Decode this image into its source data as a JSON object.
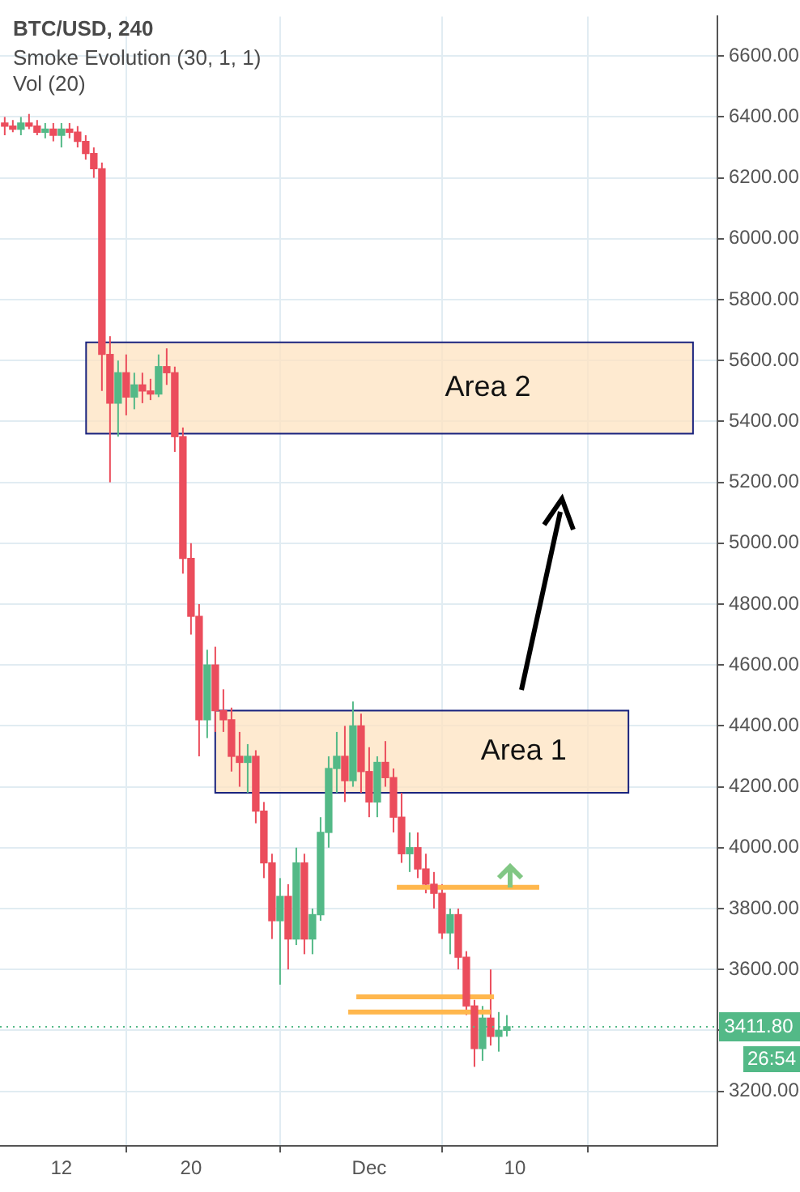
{
  "chart_data": {
    "type": "candlestick",
    "title": "BTC/USD, 240",
    "subtitle": "Smoke Evolution (30, 1, 1)",
    "x": [
      "--11-08T12:00",
      "--11-09",
      "--11-09T12:00",
      "--11-10",
      "--11-10T12:00",
      "--11-11",
      "--11-11T12:00",
      "--11-12",
      "--11-12T12:00",
      "--11-13",
      "--11-13T12:00",
      "--11-14",
      "--11-14T12:00",
      "--11-15",
      "--11-15T12:00",
      "--11-16",
      "--11-16T12:00",
      "--11-17",
      "--11-17T12:00",
      "--11-18",
      "--11-18T12:00",
      "--11-19",
      "--11-19T12:00",
      "--11-20",
      "--11-20T12:00",
      "--11-21",
      "--11-21T12:00",
      "--11-22",
      "--11-22T12:00",
      "--11-23",
      "--11-23T12:00",
      "--11-24",
      "--11-24T12:00",
      "--11-25",
      "--11-25T12:00",
      "--11-26",
      "--11-26T12:00",
      "--11-27",
      "--11-27T12:00",
      "--11-28",
      "--11-28T12:00",
      "--11-29",
      "--11-29T12:00",
      "--11-30",
      "--11-30T12:00",
      "--12-01",
      "--12-01T12:00",
      "--12-02",
      "--12-02T12:00",
      "--12-03",
      "--12-03T12:00",
      "--12-04",
      "--12-04T12:00",
      "--12-05",
      "--12-05T12:00",
      "--12-06",
      "--12-06T12:00",
      "--12-07",
      "--12-07T12:00",
      "--12-08",
      "--12-08T12:00",
      "--12-09",
      "--12-09T12:00"
    ],
    "ohlc": [
      [
        6380,
        6400,
        6340,
        6370
      ],
      [
        6370,
        6390,
        6350,
        6360
      ],
      [
        6360,
        6400,
        6340,
        6380
      ],
      [
        6380,
        6410,
        6360,
        6370
      ],
      [
        6370,
        6390,
        6340,
        6350
      ],
      [
        6350,
        6380,
        6330,
        6360
      ],
      [
        6360,
        6380,
        6320,
        6340
      ],
      [
        6340,
        6380,
        6300,
        6360
      ],
      [
        6360,
        6380,
        6330,
        6350
      ],
      [
        6350,
        6370,
        6300,
        6320
      ],
      [
        6320,
        6340,
        6260,
        6280
      ],
      [
        6280,
        6300,
        6200,
        6230
      ],
      [
        6230,
        6250,
        5500,
        5620
      ],
      [
        5620,
        5680,
        5200,
        5460
      ],
      [
        5460,
        5600,
        5350,
        5560
      ],
      [
        5560,
        5620,
        5420,
        5480
      ],
      [
        5480,
        5560,
        5440,
        5520
      ],
      [
        5520,
        5560,
        5460,
        5500
      ],
      [
        5500,
        5540,
        5470,
        5490
      ],
      [
        5490,
        5620,
        5480,
        5580
      ],
      [
        5580,
        5640,
        5520,
        5560
      ],
      [
        5560,
        5580,
        5300,
        5350
      ],
      [
        5350,
        5380,
        4900,
        4950
      ],
      [
        4950,
        5000,
        4700,
        4760
      ],
      [
        4760,
        4800,
        4300,
        4420
      ],
      [
        4420,
        4650,
        4360,
        4600
      ],
      [
        4600,
        4660,
        4380,
        4450
      ],
      [
        4450,
        4520,
        4380,
        4420
      ],
      [
        4420,
        4460,
        4250,
        4300
      ],
      [
        4300,
        4380,
        4200,
        4280
      ],
      [
        4280,
        4340,
        4180,
        4300
      ],
      [
        4300,
        4320,
        4080,
        4120
      ],
      [
        4120,
        4150,
        3900,
        3950
      ],
      [
        3950,
        3980,
        3700,
        3760
      ],
      [
        3760,
        3900,
        3550,
        3840
      ],
      [
        3840,
        3880,
        3600,
        3700
      ],
      [
        3700,
        4000,
        3680,
        3950
      ],
      [
        3950,
        3980,
        3650,
        3700
      ],
      [
        3700,
        3800,
        3650,
        3780
      ],
      [
        3780,
        4100,
        3760,
        4050
      ],
      [
        4050,
        4300,
        4000,
        4260
      ],
      [
        4260,
        4380,
        4180,
        4300
      ],
      [
        4300,
        4400,
        4150,
        4220
      ],
      [
        4220,
        4480,
        4200,
        4400
      ],
      [
        4400,
        4440,
        4180,
        4250
      ],
      [
        4250,
        4330,
        4100,
        4150
      ],
      [
        4150,
        4300,
        4100,
        4280
      ],
      [
        4280,
        4350,
        4200,
        4230
      ],
      [
        4230,
        4260,
        4050,
        4100
      ],
      [
        4100,
        4180,
        3950,
        3980
      ],
      [
        3980,
        4050,
        3920,
        4000
      ],
      [
        4000,
        4050,
        3900,
        3930
      ],
      [
        3930,
        3980,
        3850,
        3880
      ],
      [
        3880,
        3920,
        3800,
        3850
      ],
      [
        3850,
        3880,
        3700,
        3720
      ],
      [
        3720,
        3800,
        3650,
        3780
      ],
      [
        3780,
        3800,
        3600,
        3640
      ],
      [
        3640,
        3660,
        3450,
        3480
      ],
      [
        3480,
        3500,
        3280,
        3340
      ],
      [
        3340,
        3480,
        3300,
        3440
      ],
      [
        3440,
        3600,
        3350,
        3380
      ],
      [
        3380,
        3460,
        3330,
        3400
      ],
      [
        3400,
        3450,
        3380,
        3411.8
      ]
    ],
    "colors": [
      "#eb4d5c",
      "#eb4d5c",
      "#53b987",
      "#eb4d5c",
      "#eb4d5c",
      "#53b987",
      "#eb4d5c",
      "#53b987",
      "#eb4d5c",
      "#eb4d5c",
      "#eb4d5c",
      "#eb4d5c",
      "#eb4d5c",
      "#eb4d5c",
      "#53b987",
      "#eb4d5c",
      "#53b987",
      "#eb4d5c",
      "#eb4d5c",
      "#53b987",
      "#eb4d5c",
      "#eb4d5c",
      "#eb4d5c",
      "#eb4d5c",
      "#eb4d5c",
      "#53b987",
      "#eb4d5c",
      "#eb4d5c",
      "#eb4d5c",
      "#eb4d5c",
      "#53b987",
      "#eb4d5c",
      "#eb4d5c",
      "#eb4d5c",
      "#53b987",
      "#eb4d5c",
      "#53b987",
      "#eb4d5c",
      "#53b987",
      "#53b987",
      "#53b987",
      "#53b987",
      "#eb4d5c",
      "#53b987",
      "#eb4d5c",
      "#eb4d5c",
      "#53b987",
      "#eb4d5c",
      "#eb4d5c",
      "#eb4d5c",
      "#53b987",
      "#eb4d5c",
      "#eb4d5c",
      "#eb4d5c",
      "#eb4d5c",
      "#53b987",
      "#eb4d5c",
      "#eb4d5c",
      "#eb4d5c",
      "#53b987",
      "#eb4d5c",
      "#53b987",
      "#53b987"
    ],
    "series": [
      {
        "type": "line",
        "color": "#ffb74d",
        "x": [
          "--12-02T17:00",
          "--12-11T12:00"
        ],
        "values": [
          3870,
          3870
        ]
      },
      {
        "type": "line",
        "color": "#ffb74d",
        "x": [
          "--11-30T05:00",
          "--12-08T17:00"
        ],
        "values": [
          3510,
          3510
        ]
      },
      {
        "type": "line",
        "color": "#ffb74d",
        "x": [
          "--11-29T17:00",
          "--12-08T12:00"
        ],
        "values": [
          3460,
          3460
        ]
      }
    ],
    "xlim": [
      "--11-08T05:00",
      "--12-22T12:00"
    ],
    "xticks": [
      {
        "value": "--11-12",
        "label": "12"
      },
      {
        "value": "--11-20",
        "label": "20"
      },
      {
        "value": "--12-01",
        "label": "Dec"
      },
      {
        "value": "--12-10",
        "label": "10"
      }
    ],
    "ylim": [
      3020,
      6730
    ],
    "yticks": [
      {
        "value": 3200,
        "label": "3200.00"
      },
      {
        "value": 3400,
        "label": null
      },
      {
        "value": 3600,
        "label": "3600.00"
      },
      {
        "value": 3800,
        "label": "3800.00"
      },
      {
        "value": 4000,
        "label": "4000.00"
      },
      {
        "value": 4200,
        "label": "4200.00"
      },
      {
        "value": 4400,
        "label": "4400.00"
      },
      {
        "value": 4600,
        "label": "4600.00"
      },
      {
        "value": 4800,
        "label": "4800.00"
      },
      {
        "value": 5000,
        "label": "5000.00"
      },
      {
        "value": 5200,
        "label": "5200.00"
      },
      {
        "value": 5400,
        "label": "5400.00"
      },
      {
        "value": 5600,
        "label": "5600.00"
      },
      {
        "value": 5800,
        "label": "5800.00"
      },
      {
        "value": 6000,
        "label": "6000.00"
      },
      {
        "value": 6200,
        "label": "6200.00"
      },
      {
        "value": 6400,
        "label": "6400.00"
      },
      {
        "value": 6600,
        "label": "6600.00"
      }
    ],
    "grid": true,
    "ref_lines": [
      {
        "axis": "y",
        "value": 3411.8,
        "label": "3411.80",
        "color": "#53b987"
      }
    ],
    "bands": [
      {
        "axis": "y",
        "from": 5360,
        "to": 5660,
        "label": "Area 2",
        "color": "#fde3c0"
      },
      {
        "axis": "y",
        "from": 4180,
        "to": 4450,
        "label": "Area 1",
        "color": "#fde3c0"
      }
    ],
    "annotations": [
      "Vol (20)",
      "26:54"
    ]
  }
}
